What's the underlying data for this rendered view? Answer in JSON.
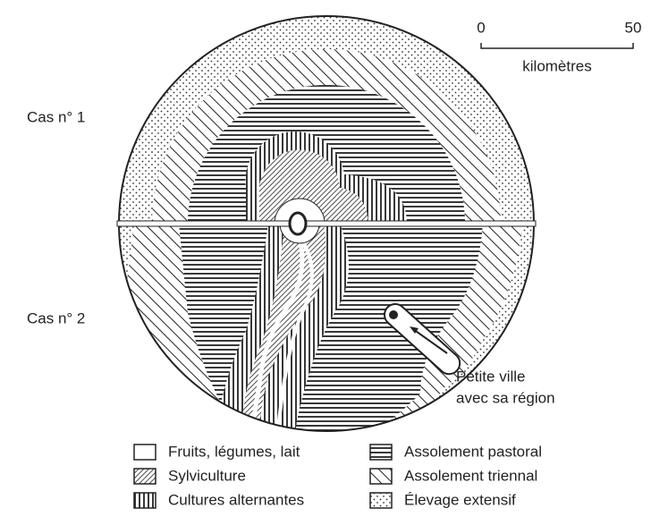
{
  "scale": {
    "start": "0",
    "end": "50",
    "unit": "kilomètres"
  },
  "cases": [
    "Cas n° 1",
    "Cas n° 2"
  ],
  "town": {
    "lines": [
      "Petite ville",
      "avec sa région"
    ]
  },
  "legend": [
    "Fruits, légumes, lait",
    "Sylviculture",
    "Cultures alternantes",
    "Assolement pastoral",
    "Assolement triennal",
    "Élevage extensif"
  ]
}
